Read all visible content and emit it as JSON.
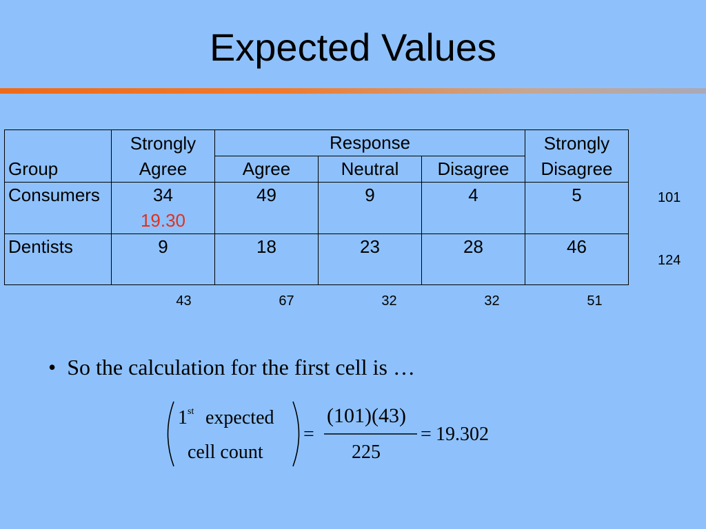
{
  "slide": {
    "title": "Expected Values"
  },
  "table": {
    "header_group": "Group",
    "header_response": "Response",
    "col_headers": [
      "Strongly\nAgree",
      "Agree",
      "Neutral",
      "Disagree",
      "Strongly\nDisagree"
    ],
    "rows": [
      {
        "group": "Consumers",
        "values": [
          "34",
          "49",
          "9",
          "4",
          "5"
        ],
        "expected_first": "19.30",
        "row_total": "101"
      },
      {
        "group": "Dentists",
        "values": [
          "9",
          "18",
          "23",
          "28",
          "46"
        ],
        "row_total": "124"
      }
    ],
    "col_totals": [
      "43",
      "67",
      "32",
      "32",
      "51"
    ]
  },
  "bullet": {
    "marker": "•",
    "text": "So the calculation for the first cell is …"
  },
  "formula": {
    "lhs_num": "1",
    "lhs_sup": "st",
    "lhs_word1": "expected",
    "lhs_word2": "cell count",
    "eq1": "=",
    "numerator": "(101)(43)",
    "denominator": "225",
    "eq2": "=",
    "result": "19.302"
  }
}
